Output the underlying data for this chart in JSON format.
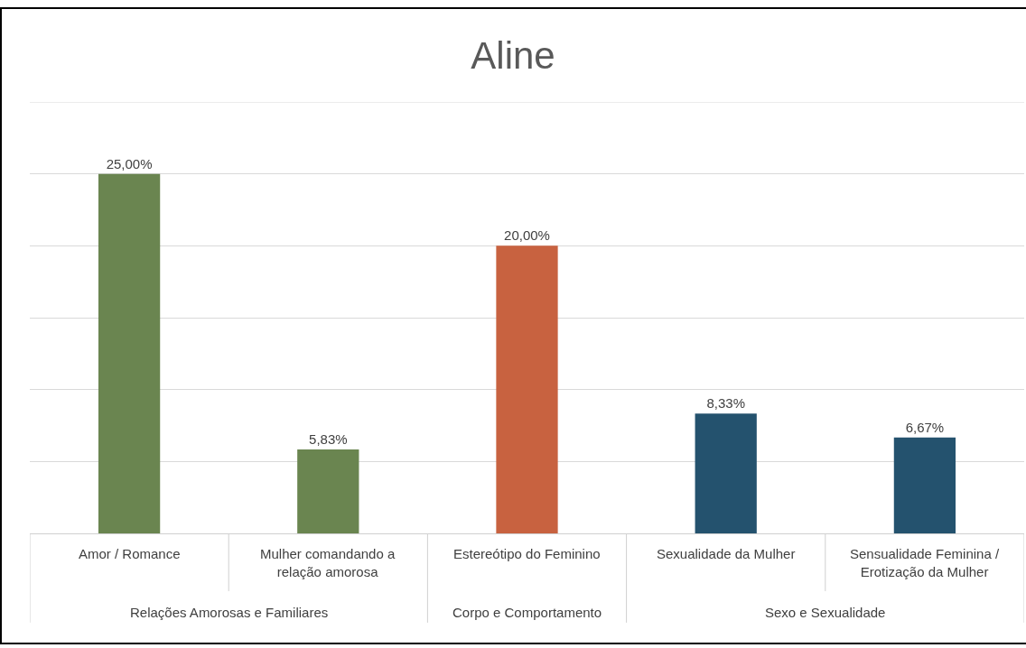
{
  "chart_data": {
    "type": "bar",
    "title": "Aline",
    "categories": [
      "Amor / Romance",
      "Mulher comandando a relação amorosa",
      "Estereótipo do Feminino",
      "Sexualidade da Mulher",
      "Sensualidade Feminina / Erotização da Mulher"
    ],
    "values": [
      25,
      5.83,
      20,
      8.33,
      6.67
    ],
    "colors": [
      "#6a8550",
      "#6a8550",
      "#c86240",
      "#24526e",
      "#24526e"
    ],
    "value_labels": [
      "25,00%",
      "5,83%",
      "20,00%",
      "8,33%",
      "6,67%"
    ],
    "annotations": [
      "Relações Amorosas e Familiares",
      "Corpo e Comportamento",
      "Sexo e Sexualidade"
    ],
    "ylim": [
      0,
      30
    ],
    "yticks": [
      {
        "value": 0,
        "label": null
      },
      {
        "value": 5,
        "label": null
      },
      {
        "value": 10,
        "label": null
      },
      {
        "value": 15,
        "label": null
      },
      {
        "value": 20,
        "label": null
      },
      {
        "value": 25,
        "label": null
      },
      {
        "value": 30,
        "label": null
      }
    ],
    "tick_labels": "x",
    "grid": "y"
  }
}
